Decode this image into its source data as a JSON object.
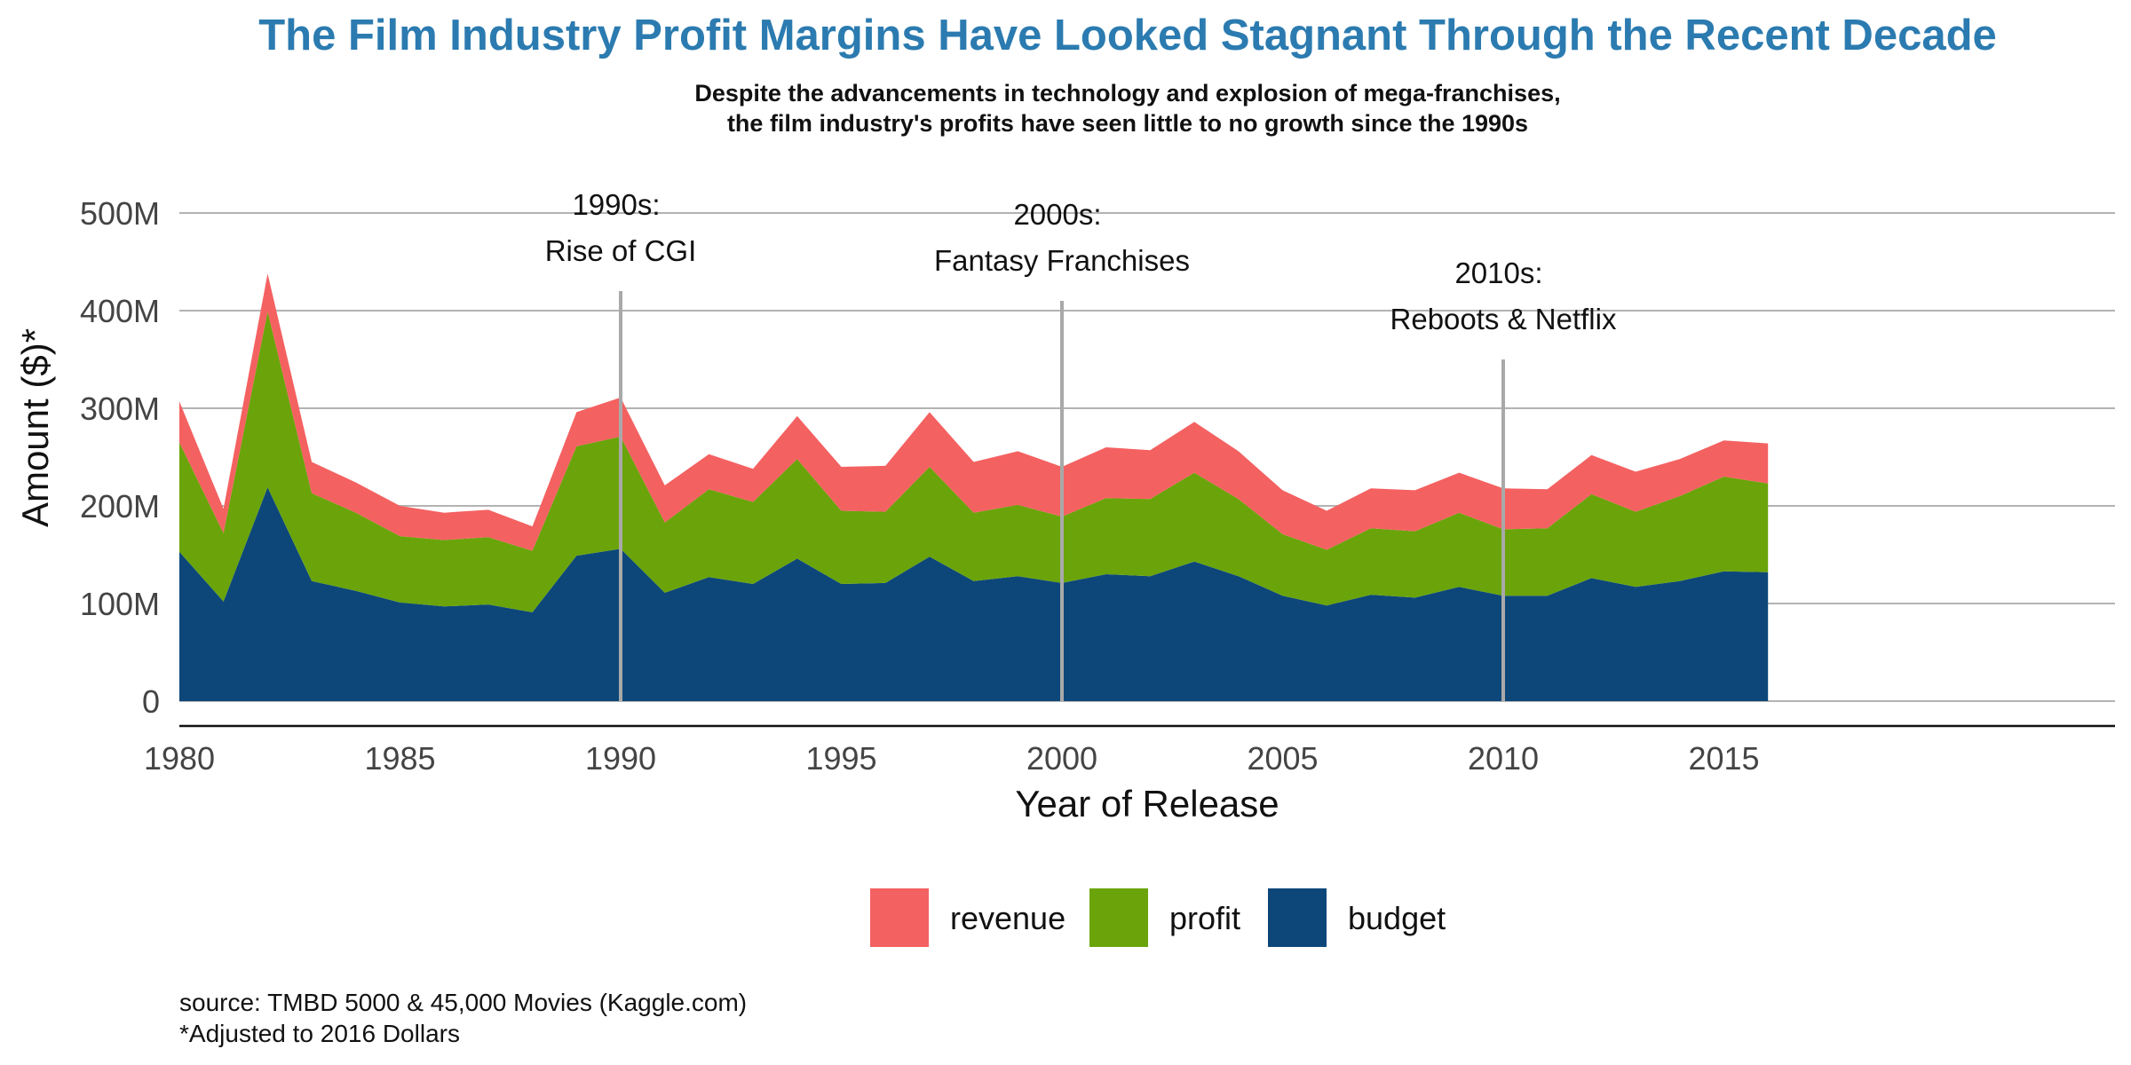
{
  "chart_data": {
    "type": "area",
    "stacked": true,
    "title": "The Film Industry Profit Margins Have Looked Stagnant Through the Recent Decade",
    "subtitle": [
      "Despite the advancements in technology and explosion of mega-franchises,",
      "the film industry's profits have seen little to no growth since the 1990s"
    ],
    "xlabel": "Year of Release",
    "ylabel": "Amount ($)*",
    "xlim": [
      1980,
      2020
    ],
    "ylim": [
      0,
      500
    ],
    "x_ticks": [
      {
        "value": 1980,
        "label": "1980"
      },
      {
        "value": 1985,
        "label": "1985"
      },
      {
        "value": 1990,
        "label": "1990"
      },
      {
        "value": 1995,
        "label": "1995"
      },
      {
        "value": 2000,
        "label": "2000"
      },
      {
        "value": 2005,
        "label": "2005"
      },
      {
        "value": 2010,
        "label": "2010"
      },
      {
        "value": 2015,
        "label": "2015"
      }
    ],
    "y_ticks": [
      {
        "value": 0,
        "label": "0"
      },
      {
        "value": 100,
        "label": "100M"
      },
      {
        "value": 200,
        "label": "200M"
      },
      {
        "value": 300,
        "label": "300M"
      },
      {
        "value": 400,
        "label": "400M"
      },
      {
        "value": 500,
        "label": "500M"
      }
    ],
    "grid": "horizontal",
    "legend_position": "bottom",
    "x": [
      1980,
      1981,
      1982,
      1983,
      1984,
      1985,
      1986,
      1987,
      1988,
      1989,
      1990,
      1991,
      1992,
      1993,
      1994,
      1995,
      1996,
      1997,
      1998,
      1999,
      2000,
      2001,
      2002,
      2003,
      2004,
      2005,
      2006,
      2007,
      2008,
      2009,
      2010,
      2011,
      2012,
      2013,
      2014,
      2015,
      2016
    ],
    "series": [
      {
        "name": "budget",
        "color": "#0d477a",
        "values": [
          153,
          102,
          219,
          123,
          113,
          101,
          97,
          99,
          91,
          149,
          156,
          111,
          127,
          120,
          146,
          120,
          121,
          148,
          123,
          128,
          121,
          130,
          128,
          143,
          128,
          108,
          98,
          109,
          106,
          117,
          108,
          108,
          126,
          117,
          123,
          133,
          132
        ]
      },
      {
        "name": "profit",
        "color": "#6aa40a",
        "values": [
          112,
          70,
          180,
          90,
          80,
          68,
          68,
          69,
          63,
          112,
          115,
          72,
          90,
          84,
          102,
          75,
          73,
          92,
          70,
          73,
          68,
          78,
          79,
          91,
          79,
          63,
          57,
          68,
          68,
          76,
          68,
          69,
          86,
          77,
          87,
          97,
          91
        ]
      },
      {
        "name": "revenue",
        "color": "#f46161",
        "values": [
          42,
          25,
          39,
          32,
          31,
          31,
          28,
          28,
          25,
          35,
          40,
          38,
          36,
          34,
          44,
          45,
          47,
          56,
          52,
          55,
          51,
          52,
          50,
          52,
          49,
          45,
          40,
          41,
          42,
          41,
          42,
          40,
          40,
          41,
          38,
          37,
          41
        ]
      }
    ],
    "annotations": [
      {
        "x": 1990,
        "line_top": 420,
        "lines": [
          "1990s:",
          "Rise of CGI"
        ]
      },
      {
        "x": 2000,
        "line_top": 410,
        "lines": [
          "2000s:",
          "Fantasy Franchises"
        ]
      },
      {
        "x": 2010,
        "line_top": 350,
        "lines": [
          "2010s:",
          "Reboots & Netflix"
        ]
      }
    ],
    "caption": [
      "source: TMBD 5000 & 45,000 Movies (Kaggle.com)",
      "*Adjusted to 2016 Dollars"
    ]
  },
  "colors": {
    "title": "#2b7bb0",
    "grid": "#b3b3b3",
    "axis": "#111111",
    "annotation_line": "#a9a9a9"
  }
}
